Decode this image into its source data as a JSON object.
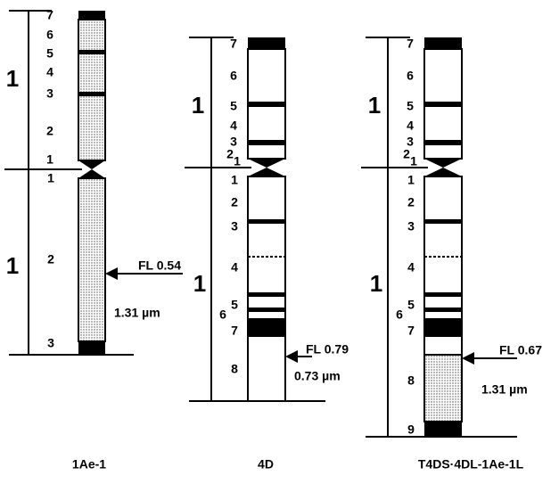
{
  "chromosomes": [
    {
      "name": "1Ae-1",
      "short_arm": {
        "arm_label": "1",
        "bands": [
          "7",
          "6",
          "5",
          "4",
          "3",
          "2",
          "1"
        ]
      },
      "long_arm": {
        "arm_label": "1",
        "bands": [
          "1",
          "2",
          "3"
        ]
      },
      "fl": "FL 0.54",
      "length": "1.31 µm"
    },
    {
      "name": "4D",
      "short_arm": {
        "arm_label": "1",
        "bands": [
          "7",
          "6",
          "5",
          "4",
          "3",
          "2",
          "1"
        ]
      },
      "long_arm": {
        "arm_label": "1",
        "bands": [
          "1",
          "2",
          "3",
          "4",
          "5",
          "6",
          "7",
          "8"
        ]
      },
      "fl": "FL 0.79",
      "length": "0.73 µm"
    },
    {
      "name": "T4DS·4DL-1Ae-1L",
      "short_arm": {
        "arm_label": "1",
        "bands": [
          "7",
          "6",
          "5",
          "4",
          "3",
          "2",
          "1"
        ]
      },
      "long_arm": {
        "arm_label": "1",
        "bands": [
          "1",
          "2",
          "3",
          "4",
          "5",
          "6",
          "7",
          "8",
          "9"
        ]
      },
      "fl": "FL 0.67",
      "length": "1.31 µm"
    }
  ]
}
